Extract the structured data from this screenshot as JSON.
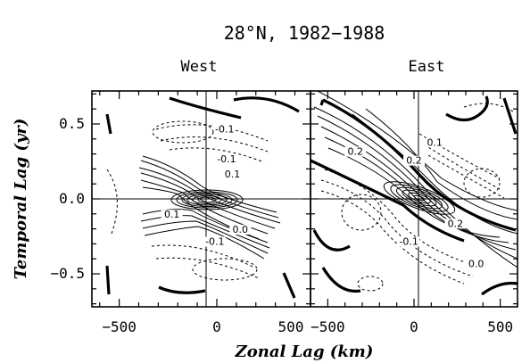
{
  "figure": {
    "title": "28°N, 1982−1988"
  },
  "chart_data": [
    {
      "type": "contour",
      "title": "West",
      "xlabel": "Zonal Lag (km)",
      "ylabel": "Temporal Lag (yr)",
      "xlim": [
        -640,
        480
      ],
      "ylim": [
        -0.72,
        0.72
      ],
      "x_ticks": [
        -500,
        0
      ],
      "x_tick_labels": [
        "−500",
        "0"
      ],
      "y_ticks": [
        -0.5,
        0.0,
        0.5
      ],
      "y_tick_labels": [
        "−0.5",
        "0.0",
        "0.5"
      ],
      "contour_labels": [
        {
          "text": "-0.1",
          "x": 40,
          "y": 0.45
        },
        {
          "text": "-0.1",
          "x": 50,
          "y": 0.25
        },
        {
          "text": "0.1",
          "x": 80,
          "y": 0.15
        },
        {
          "text": "0.1",
          "x": -230,
          "y": -0.12
        },
        {
          "text": "0.0",
          "x": 120,
          "y": -0.22
        },
        {
          "text": "-0.1",
          "x": -10,
          "y": -0.3
        }
      ]
    },
    {
      "type": "contour",
      "title": "East",
      "xlabel": "Zonal Lag (km)",
      "ylabel": "Temporal Lag (yr)",
      "xlim": [
        -600,
        600
      ],
      "ylim": [
        -0.72,
        0.72
      ],
      "x_ticks": [
        -500,
        0,
        500
      ],
      "x_tick_labels": [
        "−500",
        "0",
        "500"
      ],
      "y_ticks": [
        -0.5,
        0.0,
        0.5
      ],
      "contour_labels": [
        {
          "text": "0.1",
          "x": 120,
          "y": 0.36
        },
        {
          "text": "0.2",
          "x": -340,
          "y": 0.3
        },
        {
          "text": "0.2",
          "x": 0,
          "y": 0.24
        },
        {
          "text": "0.2",
          "x": 240,
          "y": -0.18
        },
        {
          "text": "-0.1",
          "x": -30,
          "y": -0.3
        },
        {
          "text": "0.0",
          "x": 360,
          "y": -0.45
        }
      ]
    }
  ],
  "west_x_label_500": "500"
}
